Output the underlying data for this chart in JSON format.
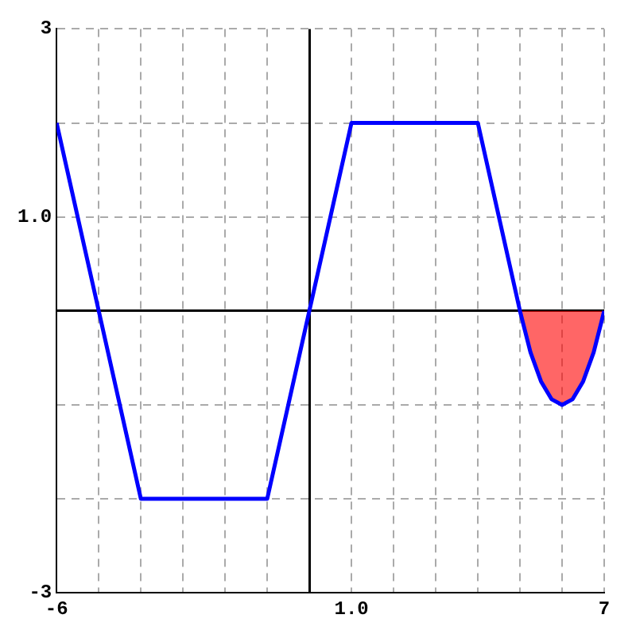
{
  "chart_data": {
    "type": "line",
    "xlim": [
      -6,
      7
    ],
    "ylim": [
      -3,
      3
    ],
    "xticks": [
      -6,
      {
        "value": -5,
        "label": null
      },
      {
        "value": -4,
        "label": null
      },
      {
        "value": -3,
        "label": null
      },
      {
        "value": -2,
        "label": null
      },
      {
        "value": -1,
        "label": null
      },
      {
        "value": 0,
        "label": null
      },
      {
        "value": 1,
        "label": "1.0"
      },
      {
        "value": 2,
        "label": null
      },
      {
        "value": 3,
        "label": null
      },
      {
        "value": 4,
        "label": null
      },
      {
        "value": 5,
        "label": null
      },
      {
        "value": 6,
        "label": null
      },
      7
    ],
    "yticks": [
      -3,
      {
        "value": -2,
        "label": null
      },
      {
        "value": -1,
        "label": null
      },
      {
        "value": 0,
        "label": null
      },
      {
        "value": 1,
        "label": "1.0"
      },
      {
        "value": 2,
        "label": null
      },
      3
    ],
    "grid": true,
    "marker": "none",
    "line_style": "solid",
    "series": [
      {
        "type": "area",
        "color": "#ff0000",
        "x": [
          5,
          5.25,
          5.5,
          5.75,
          6,
          6.25,
          6.5,
          6.75,
          7
        ],
        "values": [
          0,
          -0.44,
          -0.75,
          -0.94,
          -1,
          -0.94,
          -0.75,
          -0.44,
          0
        ]
      },
      {
        "type": "line",
        "color": "#0000ff",
        "x": [
          -6,
          -5,
          -4,
          -1,
          0,
          1,
          4,
          5,
          5.25,
          5.5,
          5.75,
          6,
          6.25,
          6.5,
          6.75,
          7
        ],
        "values": [
          2,
          0,
          -2,
          -2,
          0,
          2,
          2,
          0,
          -0.44,
          -0.75,
          -0.94,
          -1,
          -0.94,
          -0.75,
          -0.44,
          0
        ]
      }
    ]
  }
}
